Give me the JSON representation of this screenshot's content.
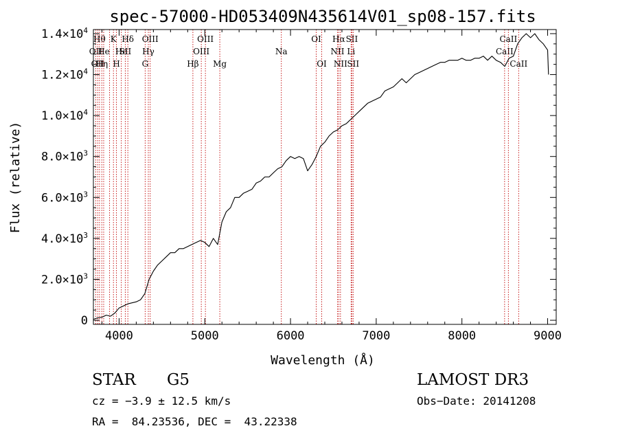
{
  "chart_data": {
    "type": "line",
    "title": "spec-57000-HD053409N435614V01_sp08-157.fits",
    "xlabel": "Wavelength (Å)",
    "ylabel": "Flux (relative)",
    "xlim": [
      3700,
      9100
    ],
    "ylim": [
      -200,
      14200
    ],
    "x_ticks": [
      {
        "value": 4000,
        "label": "4000"
      },
      {
        "value": 5000,
        "label": "5000"
      },
      {
        "value": 6000,
        "label": "6000"
      },
      {
        "value": 7000,
        "label": "7000"
      },
      {
        "value": 8000,
        "label": "8000"
      },
      {
        "value": 9000,
        "label": "9000"
      }
    ],
    "y_ticks": [
      {
        "value": 0,
        "mant": "0",
        "exp": ""
      },
      {
        "value": 2000,
        "mant": "2.0×10",
        "exp": "3"
      },
      {
        "value": 4000,
        "mant": "4.0×10",
        "exp": "3"
      },
      {
        "value": 6000,
        "mant": "6.0×10",
        "exp": "3"
      },
      {
        "value": 8000,
        "mant": "8.0×10",
        "exp": "3"
      },
      {
        "value": 10000,
        "mant": "1.0×10",
        "exp": "4"
      },
      {
        "value": 12000,
        "mant": "1.2×10",
        "exp": "4"
      },
      {
        "value": 14000,
        "mant": "1.4×10",
        "exp": "4"
      }
    ],
    "series": [
      {
        "name": "flux",
        "x": [
          3700,
          3750,
          3800,
          3850,
          3900,
          3950,
          4000,
          4050,
          4100,
          4150,
          4200,
          4250,
          4300,
          4350,
          4400,
          4450,
          4500,
          4550,
          4600,
          4650,
          4700,
          4750,
          4800,
          4850,
          4900,
          4950,
          5000,
          5050,
          5100,
          5150,
          5200,
          5250,
          5300,
          5350,
          5400,
          5450,
          5500,
          5550,
          5600,
          5650,
          5700,
          5750,
          5800,
          5850,
          5900,
          5950,
          6000,
          6050,
          6100,
          6150,
          6200,
          6250,
          6300,
          6350,
          6400,
          6450,
          6500,
          6550,
          6600,
          6650,
          6700,
          6750,
          6800,
          6850,
          6900,
          6950,
          7000,
          7050,
          7100,
          7150,
          7200,
          7250,
          7300,
          7350,
          7400,
          7450,
          7500,
          7550,
          7600,
          7650,
          7700,
          7750,
          7800,
          7850,
          7900,
          7950,
          8000,
          8050,
          8100,
          8150,
          8200,
          8250,
          8300,
          8350,
          8400,
          8450,
          8500,
          8550,
          8600,
          8650,
          8700,
          8750,
          8800,
          8850,
          8900,
          8950,
          9000,
          9010
        ],
        "y": [
          50,
          120,
          150,
          250,
          200,
          350,
          600,
          700,
          800,
          850,
          900,
          1000,
          1300,
          2000,
          2400,
          2700,
          2900,
          3100,
          3300,
          3300,
          3500,
          3500,
          3600,
          3700,
          3800,
          3900,
          3800,
          3600,
          4000,
          3700,
          4800,
          5300,
          5500,
          6000,
          6000,
          6200,
          6300,
          6400,
          6700,
          6800,
          7000,
          7000,
          7200,
          7400,
          7500,
          7800,
          8000,
          7900,
          8000,
          7900,
          7300,
          7600,
          8000,
          8500,
          8700,
          9000,
          9200,
          9300,
          9500,
          9600,
          9800,
          10000,
          10200,
          10400,
          10600,
          10700,
          10800,
          10900,
          11200,
          11300,
          11400,
          11600,
          11800,
          11600,
          11800,
          12000,
          12100,
          12200,
          12300,
          12400,
          12500,
          12600,
          12600,
          12700,
          12700,
          12700,
          12800,
          12700,
          12700,
          12800,
          12800,
          12900,
          12700,
          12900,
          12700,
          12600,
          12400,
          12800,
          12900,
          13500,
          13800,
          14000,
          13800,
          14000,
          13700,
          13500,
          13200,
          12000
        ]
      }
    ],
    "line_markers": [
      {
        "x": 3727,
        "label": "OII",
        "row": 1
      },
      {
        "x": 3750,
        "label": "OII",
        "row": 2
      },
      {
        "x": 3771,
        "label": "Hθ",
        "row": 0
      },
      {
        "x": 3798,
        "label": "Hη",
        "row": 2
      },
      {
        "x": 3820,
        "label": "He",
        "row": 1
      },
      {
        "x": 3889,
        "label": "",
        "row": 0
      },
      {
        "x": 3934,
        "label": "K",
        "row": 0
      },
      {
        "x": 3969,
        "label": "H",
        "row": 2
      },
      {
        "x": 4026,
        "label": "He",
        "row": 1
      },
      {
        "x": 4072,
        "label": "SII",
        "row": 1
      },
      {
        "x": 4102,
        "label": "Hδ",
        "row": 0
      },
      {
        "x": 4304,
        "label": "G",
        "row": 2
      },
      {
        "x": 4341,
        "label": "Hγ",
        "row": 1
      },
      {
        "x": 4363,
        "label": "OIII",
        "row": 0
      },
      {
        "x": 4861,
        "label": "Hβ",
        "row": 2
      },
      {
        "x": 4959,
        "label": "OIII",
        "row": 1
      },
      {
        "x": 5007,
        "label": "OIII",
        "row": 0
      },
      {
        "x": 5175,
        "label": "Mg",
        "row": 2
      },
      {
        "x": 5893,
        "label": "Na",
        "row": 1
      },
      {
        "x": 6300,
        "label": "OI",
        "row": 0
      },
      {
        "x": 6364,
        "label": "OI",
        "row": 2
      },
      {
        "x": 6548,
        "label": "NII",
        "row": 1
      },
      {
        "x": 6563,
        "label": "Hα",
        "row": 0
      },
      {
        "x": 6583,
        "label": "NII",
        "row": 2
      },
      {
        "x": 6707,
        "label": "Li",
        "row": 1
      },
      {
        "x": 6716,
        "label": "SII",
        "row": 0
      },
      {
        "x": 6731,
        "label": "SII",
        "row": 2
      },
      {
        "x": 8498,
        "label": "CaII",
        "row": 1
      },
      {
        "x": 8542,
        "label": "CaII",
        "row": 0
      },
      {
        "x": 8662,
        "label": "CaII",
        "row": 2
      }
    ]
  },
  "info": {
    "object_class": "STAR",
    "subclass": "G5",
    "survey": "LAMOST DR3",
    "redshift": "cz = −3.9 ± 12.5 km/s",
    "obs_date": "Obs−Date: 20141208",
    "coords": "RA =  84.23536, DEC =  43.22338"
  },
  "colors": {
    "line": "#000000",
    "marker": "#c00000"
  }
}
